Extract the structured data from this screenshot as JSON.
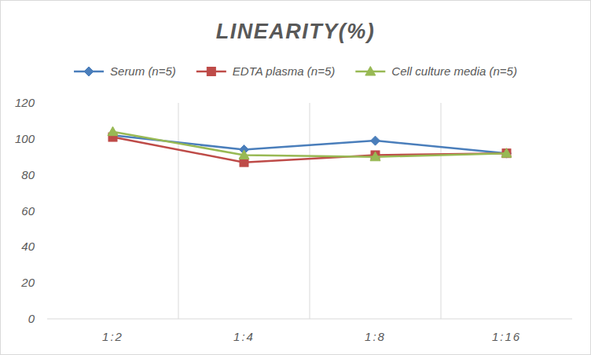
{
  "chart_data": {
    "type": "line",
    "title": "LINEARITY(%)",
    "categories": [
      "1:2",
      "1:4",
      "1:8",
      "1:16"
    ],
    "series": [
      {
        "name": "Serum (n=5)",
        "color": "#4a7ebb",
        "marker": "diamond",
        "values": [
          102,
          94,
          99,
          92
        ]
      },
      {
        "name": "EDTA plasma (n=5)",
        "color": "#be4b48",
        "marker": "square",
        "values": [
          101,
          87,
          91,
          92
        ]
      },
      {
        "name": "Cell culture media (n=5)",
        "color": "#98b954",
        "marker": "triangle",
        "values": [
          104,
          91,
          90,
          92
        ]
      }
    ],
    "ylim": [
      0,
      120
    ],
    "yticks": [
      0,
      20,
      40,
      60,
      80,
      100,
      120
    ],
    "grid": true,
    "legend": "top"
  }
}
